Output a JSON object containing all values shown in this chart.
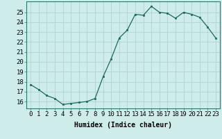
{
  "x": [
    0,
    1,
    2,
    3,
    4,
    5,
    6,
    7,
    8,
    9,
    10,
    11,
    12,
    13,
    14,
    15,
    16,
    17,
    18,
    19,
    20,
    21,
    22,
    23
  ],
  "y": [
    17.7,
    17.2,
    16.6,
    16.3,
    15.7,
    15.8,
    15.9,
    16.0,
    16.3,
    18.5,
    20.3,
    22.4,
    23.2,
    24.8,
    24.7,
    25.6,
    25.0,
    24.9,
    24.4,
    25.0,
    24.8,
    24.5,
    23.5,
    22.4
  ],
  "line_color": "#1a6b5a",
  "marker": "s",
  "marker_size": 2,
  "bg_color": "#cdecea",
  "grid_color": "#b0d4d2",
  "xlabel": "Humidex (Indice chaleur)",
  "ylabel_ticks": [
    16,
    17,
    18,
    19,
    20,
    21,
    22,
    23,
    24,
    25
  ],
  "xlim": [
    -0.5,
    23.5
  ],
  "ylim": [
    15.3,
    26.1
  ],
  "xlabel_fontsize": 7,
  "tick_fontsize": 6.5
}
